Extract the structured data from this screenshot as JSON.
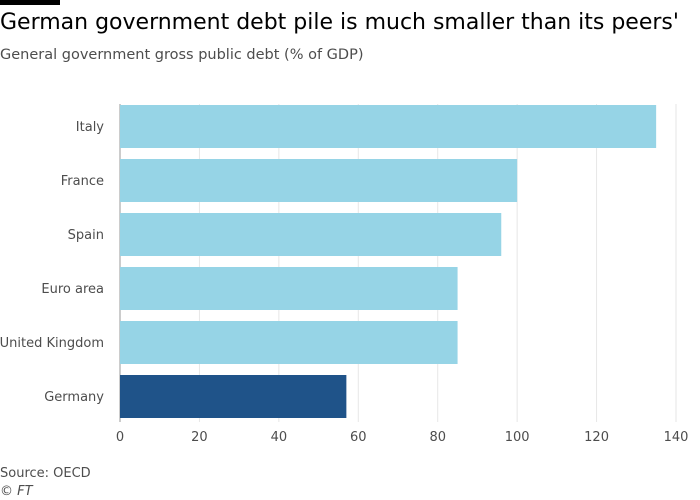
{
  "header": {
    "title": "German government debt pile is much smaller than its peers'",
    "subtitle": "General government gross public debt (% of GDP)"
  },
  "footer": {
    "source": "Source: OECD",
    "credit": "© FT"
  },
  "colors": {
    "bar": "#96d4e6",
    "highlight": "#1f5389",
    "grid": "#e6e6e6",
    "axis": "#999999"
  },
  "chart_data": {
    "type": "bar",
    "orientation": "horizontal",
    "title": "German government debt pile is much smaller than its peers'",
    "subtitle": "General government gross public debt (% of GDP)",
    "categories": [
      "Italy",
      "France",
      "Spain",
      "Euro area",
      "United Kingdom",
      "Germany"
    ],
    "values": [
      135,
      100,
      96,
      85,
      85,
      57
    ],
    "highlight": [
      "Germany"
    ],
    "xlim": [
      0,
      140
    ],
    "xticks": [
      0,
      20,
      40,
      60,
      80,
      100,
      120,
      140
    ],
    "grid": true,
    "xlabel": "",
    "ylabel": ""
  }
}
